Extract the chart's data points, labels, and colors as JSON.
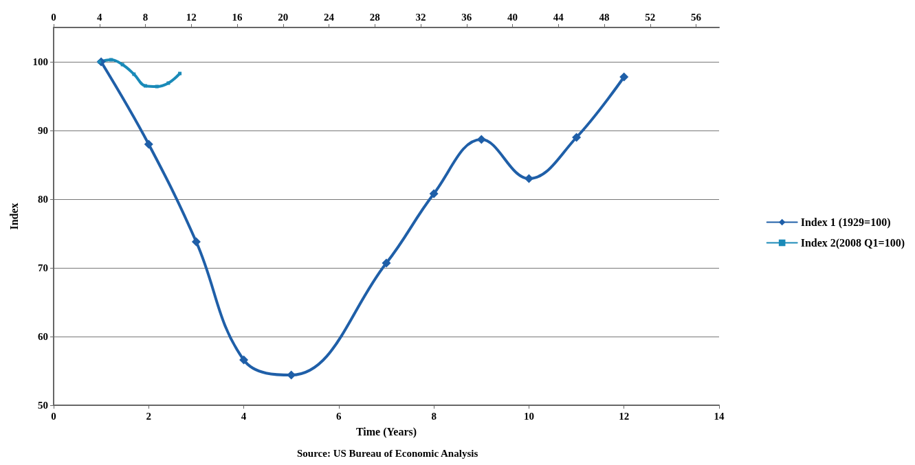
{
  "chart_data": {
    "type": "line",
    "xlabel": "Time (Years)",
    "ylabel": "Index",
    "annotations": [
      "Source: US Bureau of Economic Analysis"
    ],
    "xlim": [
      0,
      14
    ],
    "xticks": [
      0,
      2,
      4,
      6,
      8,
      10,
      12,
      14
    ],
    "x2lim": [
      0,
      58
    ],
    "x2ticks": [
      0,
      4,
      8,
      12,
      16,
      20,
      24,
      28,
      32,
      36,
      40,
      44,
      48,
      52,
      56
    ],
    "ylim": [
      50,
      105
    ],
    "yticks": [
      50,
      60,
      70,
      80,
      90,
      100
    ],
    "grid": "y",
    "legend": "right",
    "series": [
      {
        "name": "Index 1 (1929=100)",
        "color": "#1f5fa8",
        "marker": "diamond",
        "x": [
          1,
          2,
          3,
          4,
          5,
          7,
          8,
          9,
          10,
          11,
          12
        ],
        "values": [
          100,
          88,
          73.8,
          56.6,
          54.4,
          70.7,
          80.8,
          88.7,
          83,
          89,
          97.8
        ]
      },
      {
        "name": "Index 2(2008 Q1=100)",
        "color": "#1a8ab8",
        "marker": "square",
        "axis": "x2",
        "x": [
          4,
          5,
          6,
          7,
          8,
          9,
          10,
          11
        ],
        "values": [
          100,
          100.3,
          99.6,
          98.2,
          96.5,
          96.4,
          96.9,
          98.3
        ]
      }
    ]
  }
}
